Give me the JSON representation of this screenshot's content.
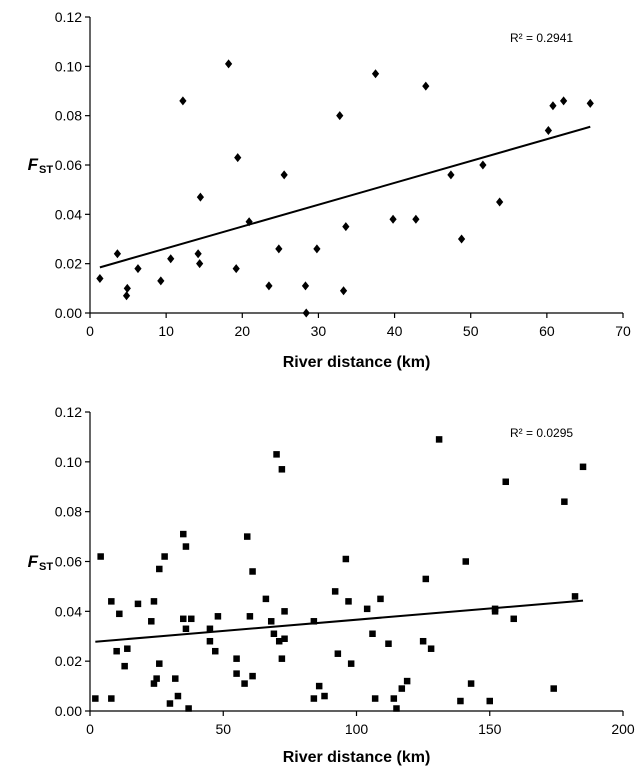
{
  "chart_data": [
    {
      "type": "scatter",
      "marker": "diamond",
      "xlabel": "River distance (km)",
      "ylabel": "F",
      "ylabel_sub": "ST",
      "xlim": [
        0,
        70
      ],
      "ylim": [
        0,
        0.12
      ],
      "x_ticks": [
        "0",
        "10",
        "20",
        "30",
        "40",
        "50",
        "60",
        "70"
      ],
      "y_ticks": [
        "0.00",
        "0.02",
        "0.04",
        "0.06",
        "0.08",
        "0.10",
        "0.12"
      ],
      "annotation": "R² = 0.2941",
      "trendline": {
        "x": [
          1.3,
          65.7
        ],
        "y": [
          0.0185,
          0.0755
        ]
      },
      "points": [
        [
          1.3,
          0.014
        ],
        [
          3.6,
          0.024
        ],
        [
          4.8,
          0.007
        ],
        [
          4.9,
          0.01
        ],
        [
          6.3,
          0.018
        ],
        [
          9.3,
          0.013
        ],
        [
          10.6,
          0.022
        ],
        [
          12.2,
          0.086
        ],
        [
          14.2,
          0.024
        ],
        [
          14.4,
          0.02
        ],
        [
          14.5,
          0.047
        ],
        [
          18.2,
          0.101
        ],
        [
          19.2,
          0.018
        ],
        [
          19.4,
          0.063
        ],
        [
          20.9,
          0.037
        ],
        [
          23.5,
          0.011
        ],
        [
          24.8,
          0.026
        ],
        [
          25.5,
          0.056
        ],
        [
          28.3,
          0.011
        ],
        [
          28.4,
          0.0
        ],
        [
          29.8,
          0.026
        ],
        [
          32.8,
          0.08
        ],
        [
          33.3,
          0.009
        ],
        [
          33.6,
          0.035
        ],
        [
          37.5,
          0.097
        ],
        [
          39.8,
          0.038
        ],
        [
          42.8,
          0.038
        ],
        [
          44.1,
          0.092
        ],
        [
          47.4,
          0.056
        ],
        [
          48.8,
          0.03
        ],
        [
          51.6,
          0.06
        ],
        [
          53.8,
          0.045
        ],
        [
          60.2,
          0.074
        ],
        [
          60.8,
          0.084
        ],
        [
          62.2,
          0.086
        ],
        [
          65.7,
          0.085
        ]
      ]
    },
    {
      "type": "scatter",
      "marker": "square",
      "xlabel": "River distance (km)",
      "ylabel": "F",
      "ylabel_sub": "ST",
      "xlim": [
        0,
        200
      ],
      "ylim": [
        0,
        0.12
      ],
      "x_ticks": [
        "0",
        "50",
        "100",
        "150",
        "200"
      ],
      "y_ticks": [
        "0.00",
        "0.02",
        "0.04",
        "0.06",
        "0.08",
        "0.10",
        "0.12"
      ],
      "annotation": "R² = 0.0295",
      "trendline": {
        "x": [
          2,
          185
        ],
        "y": [
          0.0278,
          0.0443
        ]
      },
      "points": [
        [
          2,
          0.005
        ],
        [
          4,
          0.062
        ],
        [
          8,
          0.005
        ],
        [
          8,
          0.044
        ],
        [
          10,
          0.024
        ],
        [
          11,
          0.039
        ],
        [
          13,
          0.018
        ],
        [
          14,
          0.025
        ],
        [
          18,
          0.043
        ],
        [
          23,
          0.036
        ],
        [
          24,
          0.044
        ],
        [
          24,
          0.011
        ],
        [
          25,
          0.013
        ],
        [
          26,
          0.057
        ],
        [
          26,
          0.019
        ],
        [
          28,
          0.062
        ],
        [
          30,
          0.003
        ],
        [
          32,
          0.013
        ],
        [
          33,
          0.006
        ],
        [
          35,
          0.071
        ],
        [
          35,
          0.037
        ],
        [
          36,
          0.066
        ],
        [
          36,
          0.033
        ],
        [
          37,
          0.001
        ],
        [
          38,
          0.037
        ],
        [
          45,
          0.033
        ],
        [
          45,
          0.028
        ],
        [
          47,
          0.024
        ],
        [
          48,
          0.038
        ],
        [
          55,
          0.021
        ],
        [
          55,
          0.015
        ],
        [
          58,
          0.011
        ],
        [
          59,
          0.07
        ],
        [
          60,
          0.038
        ],
        [
          61,
          0.056
        ],
        [
          61,
          0.014
        ],
        [
          66,
          0.045
        ],
        [
          68,
          0.036
        ],
        [
          69,
          0.031
        ],
        [
          70,
          0.103
        ],
        [
          71,
          0.028
        ],
        [
          72,
          0.097
        ],
        [
          72,
          0.021
        ],
        [
          73,
          0.04
        ],
        [
          73,
          0.029
        ],
        [
          84,
          0.005
        ],
        [
          84,
          0.036
        ],
        [
          86,
          0.01
        ],
        [
          88,
          0.006
        ],
        [
          92,
          0.048
        ],
        [
          93,
          0.023
        ],
        [
          96,
          0.061
        ],
        [
          97,
          0.044
        ],
        [
          98,
          0.019
        ],
        [
          104,
          0.041
        ],
        [
          106,
          0.031
        ],
        [
          107,
          0.005
        ],
        [
          109,
          0.045
        ],
        [
          112,
          0.027
        ],
        [
          114,
          0.005
        ],
        [
          115,
          0.001
        ],
        [
          117,
          0.009
        ],
        [
          119,
          0.012
        ],
        [
          125,
          0.028
        ],
        [
          126,
          0.053
        ],
        [
          128,
          0.025
        ],
        [
          131,
          0.109
        ],
        [
          139,
          0.004
        ],
        [
          141,
          0.06
        ],
        [
          143,
          0.011
        ],
        [
          150,
          0.004
        ],
        [
          152,
          0.04
        ],
        [
          152,
          0.041
        ],
        [
          156,
          0.092
        ],
        [
          159,
          0.037
        ],
        [
          174,
          0.009
        ],
        [
          178,
          0.084
        ],
        [
          182,
          0.046
        ],
        [
          185,
          0.098
        ]
      ]
    }
  ]
}
